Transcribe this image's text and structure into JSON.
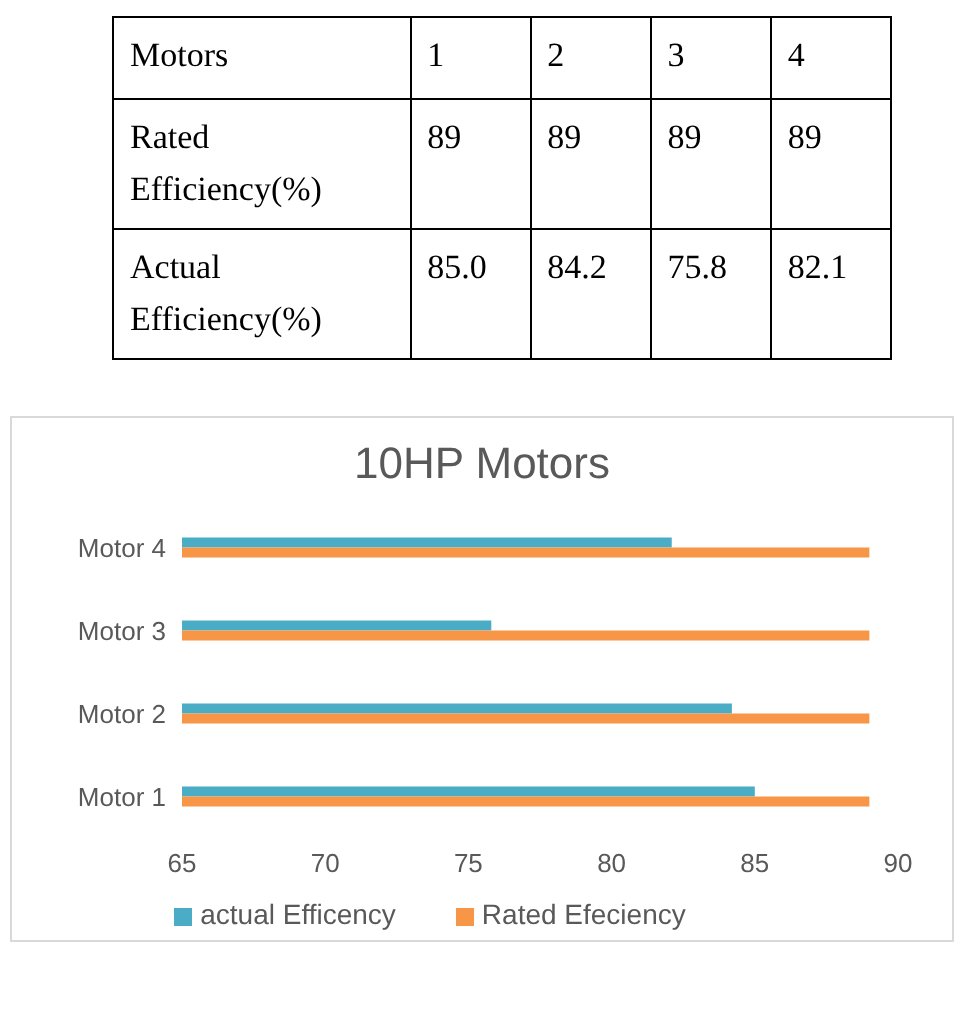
{
  "chart_data": {
    "type": "bar",
    "orientation": "horizontal",
    "title": "10HP Motors",
    "categories": [
      "Motor 4",
      "Motor 3",
      "Motor 2",
      "Motor 1"
    ],
    "series": [
      {
        "name": "actual Efficency",
        "color": "#4bacc6",
        "values": [
          82.1,
          75.8,
          84.2,
          85.0
        ]
      },
      {
        "name": "Rated Efeciency",
        "color": "#f79646",
        "values": [
          89,
          89,
          89,
          89
        ]
      }
    ],
    "annotations": [
      "Motors",
      "1",
      "2",
      "3",
      "4",
      "Rated Efficiency(%)",
      "89",
      "89",
      "89",
      "89",
      "Actual Efficiency(%)",
      "85.0",
      "84.2",
      "75.8",
      "82.1"
    ],
    "xlim": [
      65,
      90
    ],
    "xticks": [
      65,
      70,
      75,
      80,
      85,
      90
    ],
    "legend": "bottom"
  }
}
